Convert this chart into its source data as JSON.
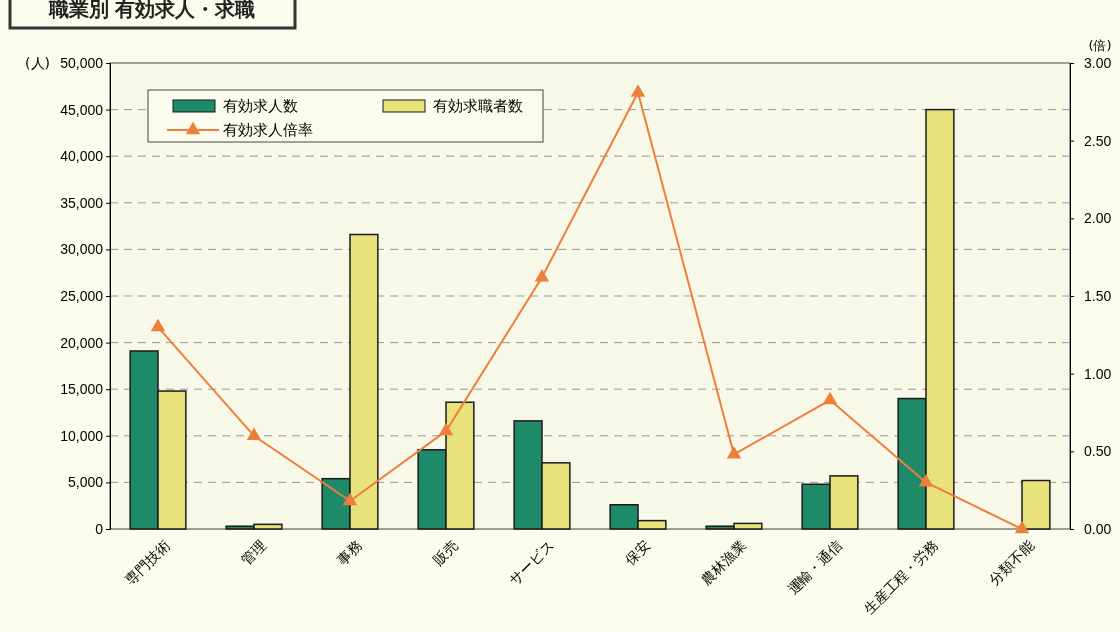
{
  "chart_data": {
    "type": "bar",
    "title": "職業別 有効求人・求職",
    "ylabel": "(人)",
    "y2label": "(倍)",
    "categories": [
      "専門技術",
      "管理",
      "事務",
      "販売",
      "サービス",
      "保安",
      "農林漁業",
      "運輸・通信",
      "生産工程・労務",
      "分類不能"
    ],
    "series": [
      {
        "name": "有効求人数",
        "color": "#1f8a6a",
        "values": [
          19100,
          300,
          5400,
          8500,
          11600,
          2600,
          300,
          4800,
          14000,
          0
        ]
      },
      {
        "name": "有効求職者数",
        "color": "#e8e27a",
        "values": [
          14800,
          500,
          31600,
          13600,
          7100,
          900,
          600,
          5700,
          45000,
          5200
        ]
      },
      {
        "name": "有効求人倍率",
        "type": "line",
        "axis": "y2",
        "color": "#ee7f3a",
        "marker": "triangle",
        "values": [
          1.3,
          0.6,
          0.18,
          0.63,
          1.62,
          2.81,
          0.48,
          0.83,
          0.3,
          0.0
        ]
      }
    ],
    "ylim": [
      0,
      50000
    ],
    "yticks": [
      {
        "value": 0,
        "label": "0"
      },
      {
        "value": 5000,
        "label": "5,000"
      },
      {
        "value": 10000,
        "label": "10,000"
      },
      {
        "value": 15000,
        "label": "15,000"
      },
      {
        "value": 20000,
        "label": "20,000"
      },
      {
        "value": 25000,
        "label": "25,000"
      },
      {
        "value": 30000,
        "label": "30,000"
      },
      {
        "value": 35000,
        "label": "35,000"
      },
      {
        "value": 40000,
        "label": "40,000"
      },
      {
        "value": 45000,
        "label": "45,000"
      },
      {
        "value": 50000,
        "label": "50,000"
      }
    ],
    "y2lim": [
      0,
      3
    ],
    "y2ticks": [
      {
        "value": 0,
        "label": "0.00"
      },
      {
        "value": 0.5,
        "label": "0.50"
      },
      {
        "value": 1,
        "label": "1.00"
      },
      {
        "value": 1.5,
        "label": "1.50"
      },
      {
        "value": 2,
        "label": "2.00"
      },
      {
        "value": 2.5,
        "label": "2.50"
      },
      {
        "value": 3,
        "label": "3.00"
      }
    ],
    "grid": "y",
    "legend": "top left"
  }
}
